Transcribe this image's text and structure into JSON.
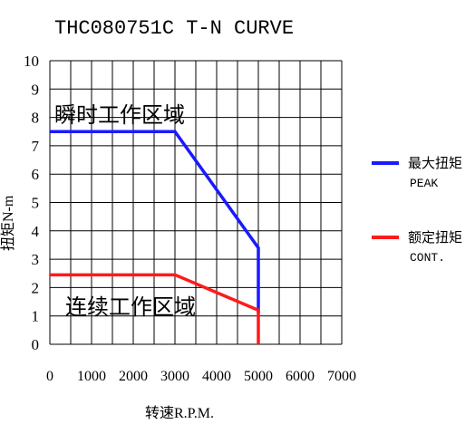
{
  "chart_data": {
    "type": "line",
    "title": "THC080751C T-N CURVE",
    "xlabel": "转速R.P.M.",
    "ylabel": "扭矩N-m",
    "xlim": [
      0,
      7000
    ],
    "ylim": [
      0,
      10
    ],
    "x_ticks": [
      0,
      1000,
      2000,
      3000,
      4000,
      5000,
      6000,
      7000
    ],
    "y_ticks": [
      0,
      1,
      2,
      3,
      4,
      5,
      6,
      7,
      8,
      9,
      10
    ],
    "grid": true,
    "legend_position": "right",
    "region_labels": {
      "peak": "瞬时工作区域",
      "continuous": "连续工作区域"
    },
    "series": [
      {
        "name": "最大扭矩",
        "sub_label": "PEAK",
        "color": "#1a1aff",
        "x": [
          0,
          3000,
          5000,
          5000
        ],
        "y": [
          7.5,
          7.5,
          3.4,
          1.1
        ]
      },
      {
        "name": "额定扭矩",
        "sub_label": "CONT.",
        "color": "#ff1a1a",
        "x": [
          0,
          3000,
          5000,
          5000
        ],
        "y": [
          2.45,
          2.45,
          1.2,
          0
        ]
      }
    ]
  }
}
